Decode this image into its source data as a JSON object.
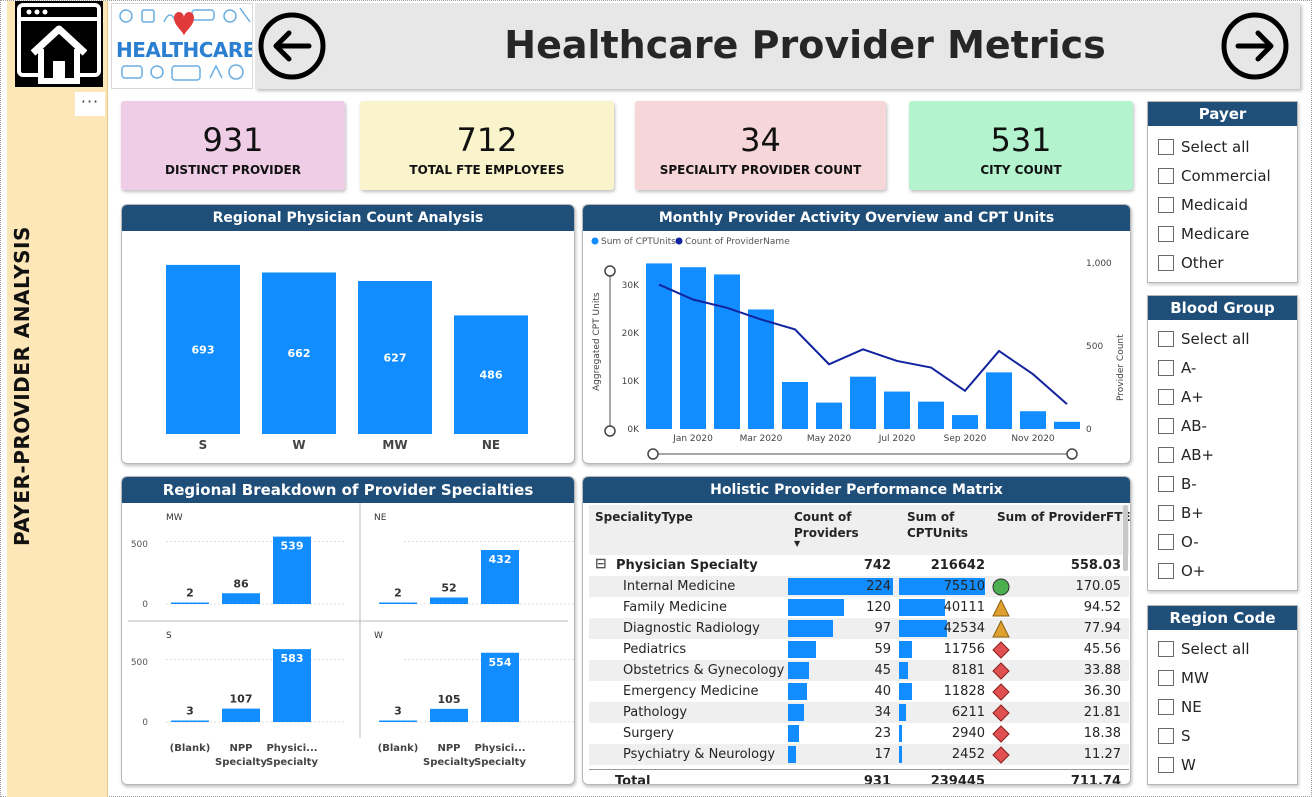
{
  "sidebar": {
    "title": "PAYER-PROVIDER ANALYSIS",
    "menu_dots": "···",
    "home_icon": "home-icon"
  },
  "header": {
    "logo_text": "HEALTHCARE",
    "title": "Healthcare Provider Metrics",
    "back_icon": "arrow-left-icon",
    "forward_icon": "arrow-right-icon"
  },
  "kpis": [
    {
      "value": "931",
      "label": "DISTINCT PROVIDER",
      "color": "#f0cde6"
    },
    {
      "value": "712",
      "label": "TOTAL FTE EMPLOYEES",
      "color": "#faf4cc"
    },
    {
      "value": "34",
      "label": "SPECIALITY PROVIDER COUNT",
      "color": "#f7d6d9"
    },
    {
      "value": "531",
      "label": "CITY COUNT",
      "color": "#b3f4cf"
    }
  ],
  "colors": {
    "accent": "#118dff",
    "header": "#1f4e79",
    "line": "#12239e",
    "green": "#4caf50",
    "amber": "#e0a030",
    "red": "#e05050"
  },
  "regional_chart": {
    "title": "Regional Physician Count Analysis",
    "chart_data": {
      "type": "bar",
      "categories": [
        "S",
        "W",
        "MW",
        "NE"
      ],
      "values": [
        693,
        662,
        627,
        486
      ],
      "ylim": [
        0,
        750
      ]
    }
  },
  "monthly_chart": {
    "title": "Monthly Provider Activity Overview and CPT Units",
    "legend": [
      "Sum of CPTUnits",
      "Count of ProviderName"
    ],
    "ylabel_left": "Aggregated CPT Units",
    "ylabel_right": "Provider Count",
    "left_ticks": [
      "30K",
      "20K",
      "10K",
      "0K"
    ],
    "right_ticks": [
      "1,000",
      "500",
      "0"
    ],
    "x_ticks": [
      "Jan 2020",
      "Mar 2020",
      "May 2020",
      "Jul 2020",
      "Sep 2020",
      "Nov 2020"
    ],
    "chart_data": {
      "type": "bar",
      "categories": [
        "Dec 2019",
        "Jan 2020",
        "Feb 2020",
        "Mar 2020",
        "Apr 2020",
        "May 2020",
        "Jun 2020",
        "Jul 2020",
        "Aug 2020",
        "Sep 2020",
        "Oct 2020",
        "Nov 2020",
        "Dec 2020"
      ],
      "series": [
        {
          "name": "Sum of CPTUnits",
          "type": "bar",
          "axis": "left",
          "values": [
            34500,
            33700,
            32200,
            24900,
            9800,
            5500,
            10900,
            7800,
            5700,
            2900,
            11800,
            3700,
            1500
          ]
        },
        {
          "name": "Count of ProviderName",
          "type": "line",
          "axis": "right",
          "values": [
            870,
            780,
            730,
            660,
            600,
            390,
            480,
            410,
            370,
            230,
            470,
            330,
            150
          ]
        }
      ],
      "ylim_left": [
        0,
        35000
      ],
      "ylim_right": [
        0,
        1000
      ]
    }
  },
  "specialty_chart": {
    "title": "Regional Breakdown of Provider Specialties",
    "categories": [
      "(Blank)",
      "NPP\nSpecialty",
      "Physici...\nSpecialty"
    ],
    "y_ticks": [
      "500",
      "0"
    ],
    "chart_data": [
      {
        "type": "bar",
        "panel": "MW",
        "categories": [
          "(Blank)",
          "NPP Specialty",
          "Physician Specialty"
        ],
        "values": [
          2,
          86,
          539
        ],
        "ylim": [
          0,
          600
        ]
      },
      {
        "type": "bar",
        "panel": "NE",
        "categories": [
          "(Blank)",
          "NPP Specialty",
          "Physician Specialty"
        ],
        "values": [
          2,
          52,
          432
        ],
        "ylim": [
          0,
          600
        ]
      },
      {
        "type": "bar",
        "panel": "S",
        "categories": [
          "(Blank)",
          "NPP Specialty",
          "Physician Specialty"
        ],
        "values": [
          3,
          107,
          583
        ],
        "ylim": [
          0,
          600
        ]
      },
      {
        "type": "bar",
        "panel": "W",
        "categories": [
          "(Blank)",
          "NPP Specialty",
          "Physician Specialty"
        ],
        "values": [
          3,
          105,
          554
        ],
        "ylim": [
          0,
          600
        ]
      }
    ]
  },
  "matrix": {
    "title": "Holistic Provider Performance Matrix",
    "columns": [
      "SpecialityType",
      "Count of\nProviders",
      "Sum of\nCPTUnits",
      "Sum of ProviderFTE"
    ],
    "group": {
      "expander": "⊟",
      "name": "Physician Specialty",
      "count": "742",
      "cpt": "216642",
      "fte": "558.03"
    },
    "rows": [
      {
        "name": "Internal Medicine",
        "count": 224,
        "cpt": 75510,
        "fte": "170.05",
        "status": "green"
      },
      {
        "name": "Family Medicine",
        "count": 120,
        "cpt": 40111,
        "fte": "94.52",
        "status": "amber"
      },
      {
        "name": "Diagnostic Radiology",
        "count": 97,
        "cpt": 42534,
        "fte": "77.94",
        "status": "amber"
      },
      {
        "name": "Pediatrics",
        "count": 59,
        "cpt": 11756,
        "fte": "45.56",
        "status": "red"
      },
      {
        "name": "Obstetrics & Gynecology",
        "count": 45,
        "cpt": 8181,
        "fte": "33.88",
        "status": "red"
      },
      {
        "name": "Emergency Medicine",
        "count": 40,
        "cpt": 11828,
        "fte": "36.30",
        "status": "red"
      },
      {
        "name": "Pathology",
        "count": 34,
        "cpt": 6211,
        "fte": "21.81",
        "status": "red"
      },
      {
        "name": "Surgery",
        "count": 23,
        "cpt": 2940,
        "fte": "18.38",
        "status": "red"
      },
      {
        "name": "Psychiatry & Neurology",
        "count": 17,
        "cpt": 2452,
        "fte": "11.27",
        "status": "red"
      }
    ],
    "total": {
      "label": "Total",
      "count": "931",
      "cpt": "239445",
      "fte": "711.74"
    }
  },
  "slicers": {
    "payer": {
      "title": "Payer",
      "items": [
        "Select all",
        "Commercial",
        "Medicaid",
        "Medicare",
        "Other"
      ]
    },
    "blood": {
      "title": "Blood Group",
      "items": [
        "Select all",
        "A-",
        "A+",
        "AB-",
        "AB+",
        "B-",
        "B+",
        "O-",
        "O+"
      ]
    },
    "region": {
      "title": "Region Code",
      "items": [
        "Select all",
        "MW",
        "NE",
        "S",
        "W"
      ]
    }
  }
}
